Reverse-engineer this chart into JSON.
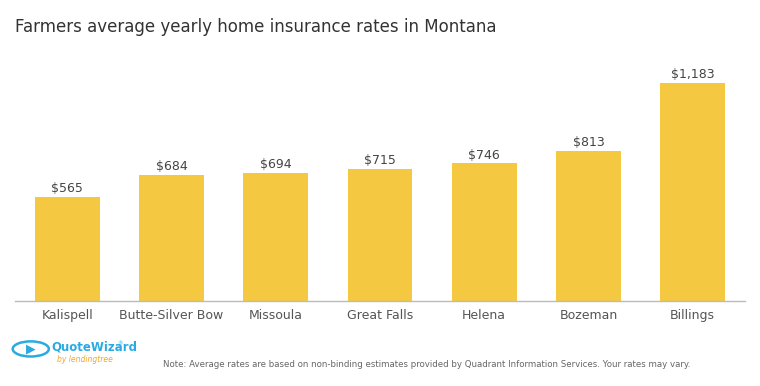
{
  "title": "Farmers average yearly home insurance rates in Montana",
  "categories": [
    "Kalispell",
    "Butte-Silver Bow",
    "Missoula",
    "Great Falls",
    "Helena",
    "Bozeman",
    "Billings"
  ],
  "values": [
    565,
    684,
    694,
    715,
    746,
    813,
    1183
  ],
  "labels": [
    "$565",
    "$684",
    "$694",
    "$715",
    "$746",
    "$813",
    "$1,183"
  ],
  "bar_color": "#F5C842",
  "background_color": "#ffffff",
  "title_fontsize": 12,
  "label_fontsize": 9,
  "tick_fontsize": 9,
  "note_text": "Note: Average rates are based on non-binding estimates provided by Quadrant Information Services. Your rates may vary.",
  "ylim": [
    0,
    1380
  ],
  "logo_text": "QuoteWizard",
  "logo_subtext": "by lendingtree",
  "logo_color": "#29ABE2",
  "logo_subcolor": "#F5A623"
}
